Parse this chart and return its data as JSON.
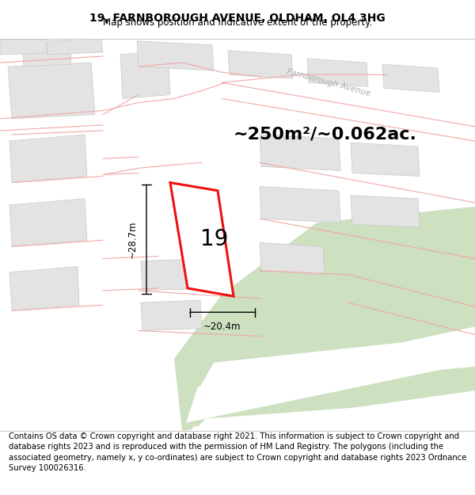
{
  "title": "19, FARNBOROUGH AVENUE, OLDHAM, OL4 3HG",
  "subtitle": "Map shows position and indicative extent of the property.",
  "area_text": "~250m²/~0.062ac.",
  "dim_width": "~20.4m",
  "dim_height": "~28.7m",
  "number_label": "19",
  "footer_text": "Contains OS data © Crown copyright and database right 2021. This information is subject to Crown copyright and database rights 2023 and is reproduced with the permission of HM Land Registry. The polygons (including the associated geometry, namely x, y co-ordinates) are subject to Crown copyright and database rights 2023 Ordnance Survey 100026316.",
  "bg_color": "#ffffff",
  "map_bg": "#f2f0ee",
  "building_color": "#e3e3e3",
  "building_edge": "#c8c8c8",
  "highlight_color": "#ee1111",
  "greenspace_color": "#cde0c0",
  "pink_line_color": "#f0a8a8",
  "road_white": "#ffffff",
  "title_fontsize": 10,
  "subtitle_fontsize": 8.5,
  "area_fontsize": 16,
  "label_fontsize": 20,
  "footer_fontsize": 7.2,
  "street_label_color": "#aaaaaa",
  "street_label_size": 7.5
}
